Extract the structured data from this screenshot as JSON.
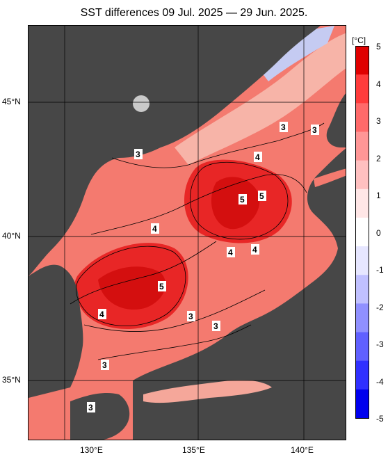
{
  "title": "SST differences 09 Jul. 2025 — 29 Jun. 2025.",
  "map": {
    "lat_labels": [
      "45°N",
      "40°N",
      "35°N"
    ],
    "lon_labels": [
      "130°E",
      "135°E",
      "140°E"
    ],
    "contour_labels": [
      "3",
      "3",
      "3",
      "4",
      "4",
      "5",
      "5",
      "4",
      "4",
      "4",
      "5",
      "4",
      "3",
      "3",
      "3",
      "3"
    ],
    "colors": {
      "land": "#474747",
      "sea_warm_low": "#f5a79a",
      "sea_warm_mid": "#f25a4e",
      "sea_warm_high": "#e81f1f",
      "sea_warm_max": "#d80e0e",
      "sea_cool": "#bcc4ef",
      "grid": "#000000"
    }
  },
  "colorbar": {
    "unit": "[°C]",
    "ticks": [
      "5",
      "4",
      "3",
      "2",
      "1",
      "0",
      "-1",
      "-2",
      "-3",
      "-4",
      "-5"
    ],
    "colors": [
      "#e00000",
      "#ff3b3b",
      "#ff6a6a",
      "#ff9696",
      "#ffc0c0",
      "#ffe6e6",
      "#ffffff",
      "#e6e6ff",
      "#c0c0ff",
      "#9090ff",
      "#6060ff",
      "#3030ff",
      "#0000ee"
    ]
  }
}
